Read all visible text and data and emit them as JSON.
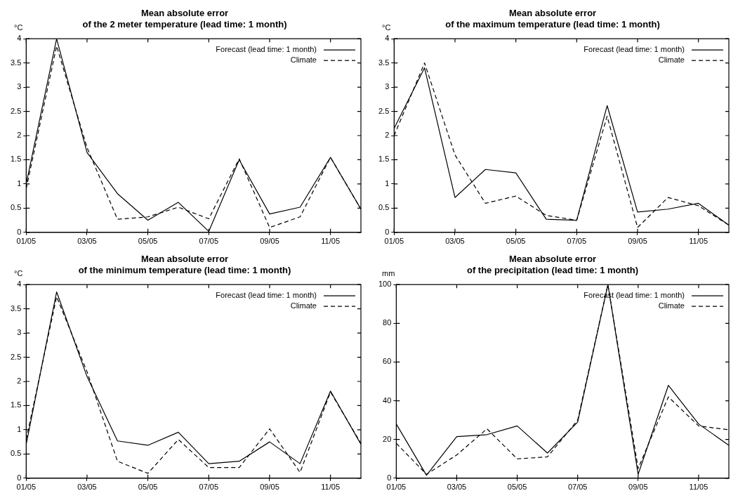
{
  "chart_data": [
    {
      "type": "line",
      "title": "Mean absolute error\nof the 2 meter temperature (lead time: 1 month)",
      "ylabel": "°C",
      "categories": [
        "01/05",
        null,
        "03/05",
        null,
        "05/05",
        null,
        "07/05",
        null,
        "09/05",
        null,
        "11/05",
        null
      ],
      "ylim": [
        0,
        4
      ],
      "yticks": [
        0,
        0.5,
        1,
        1.5,
        2,
        2.5,
        3,
        3.5,
        4
      ],
      "grid": false,
      "legend": "top right",
      "marker": "none",
      "series": [
        {
          "name": "Forecast (lead time: 1 month)",
          "color": "#000000",
          "line_style": "solid",
          "values": [
            1.0,
            4.0,
            1.65,
            0.8,
            0.25,
            0.62,
            0.02,
            1.5,
            0.38,
            0.52,
            1.55,
            0.48
          ]
        },
        {
          "name": "Climate",
          "color": "#000000",
          "line_style": "dashed",
          "values": [
            0.9,
            3.85,
            1.75,
            0.27,
            0.32,
            0.52,
            0.28,
            1.52,
            0.1,
            0.32,
            1.55,
            0.48
          ]
        }
      ]
    },
    {
      "type": "line",
      "title": "Mean absolute error\nof the maximum temperature (lead time: 1 month)",
      "ylabel": "°C",
      "categories": [
        "01/05",
        null,
        "03/05",
        null,
        "05/05",
        null,
        "07/05",
        null,
        "09/05",
        null,
        "11/05",
        null
      ],
      "ylim": [
        0,
        4
      ],
      "yticks": [
        0,
        0.5,
        1,
        1.5,
        2,
        2.5,
        3,
        3.5,
        4
      ],
      "grid": false,
      "legend": "top right",
      "marker": "none",
      "series": [
        {
          "name": "Forecast (lead time: 1 month)",
          "color": "#000000",
          "line_style": "solid",
          "values": [
            2.15,
            3.4,
            0.72,
            1.3,
            1.23,
            0.27,
            0.25,
            2.62,
            0.42,
            0.48,
            0.6,
            0.15
          ]
        },
        {
          "name": "Climate",
          "color": "#000000",
          "line_style": "dashed",
          "values": [
            2.0,
            3.5,
            1.6,
            0.6,
            0.75,
            0.35,
            0.25,
            2.4,
            0.1,
            0.72,
            0.55,
            0.15
          ]
        }
      ]
    },
    {
      "type": "line",
      "title": "Mean absolute error\nof the minimum temperature (lead time: 1 month)",
      "ylabel": "°C",
      "categories": [
        "01/05",
        null,
        "03/05",
        null,
        "05/05",
        null,
        "07/05",
        null,
        "09/05",
        null,
        "11/05",
        null
      ],
      "ylim": [
        0,
        4
      ],
      "yticks": [
        0,
        0.5,
        1,
        1.5,
        2,
        2.5,
        3,
        3.5,
        4
      ],
      "grid": false,
      "legend": "top right",
      "marker": "none",
      "series": [
        {
          "name": "Forecast (lead time: 1 month)",
          "color": "#000000",
          "line_style": "solid",
          "values": [
            0.7,
            3.85,
            2.1,
            0.77,
            0.68,
            0.95,
            0.3,
            0.35,
            0.75,
            0.3,
            1.8,
            0.7
          ]
        },
        {
          "name": "Climate",
          "color": "#000000",
          "line_style": "dashed",
          "values": [
            0.8,
            3.75,
            2.2,
            0.35,
            0.1,
            0.8,
            0.22,
            0.22,
            1.02,
            0.12,
            1.78,
            0.72
          ]
        }
      ]
    },
    {
      "type": "line",
      "title": "Mean absolute error\nof the precipitation (lead time: 1 month)",
      "ylabel": "mm",
      "categories": [
        "01/05",
        null,
        "03/05",
        null,
        "05/05",
        null,
        "07/05",
        null,
        "09/05",
        null,
        "11/05",
        null
      ],
      "ylim": [
        0,
        100
      ],
      "yticks": [
        0,
        20,
        40,
        60,
        80,
        100
      ],
      "grid": false,
      "legend": "top right",
      "marker": "none",
      "series": [
        {
          "name": "Forecast (lead time: 1 month)",
          "color": "#000000",
          "line_style": "solid",
          "values": [
            28,
            1.5,
            21.5,
            22.5,
            27,
            13,
            29,
            100,
            2,
            48,
            28,
            17
          ]
        },
        {
          "name": "Climate",
          "color": "#000000",
          "line_style": "dashed",
          "values": [
            18,
            2,
            12,
            25.5,
            10,
            11,
            30,
            100,
            5,
            42,
            27,
            25
          ]
        }
      ]
    }
  ]
}
